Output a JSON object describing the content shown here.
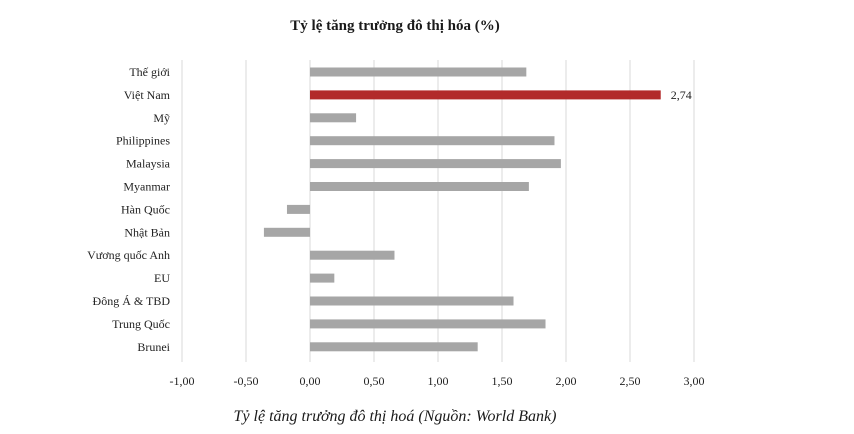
{
  "chart_data": {
    "type": "bar",
    "orientation": "horizontal",
    "title": "Tỷ lệ tăng trưởng đô thị hóa (%)",
    "caption": "Tỷ lệ tăng trưởng đô thị hoá (Nguồn: World Bank)",
    "categories": [
      "Thế giới",
      "Việt Nam",
      "Mỹ",
      "Philippines",
      "Malaysia",
      "Myanmar",
      "Hàn Quốc",
      "Nhật Bản",
      "Vương quốc Anh",
      "EU",
      "Đông Á & TBD",
      "Trung Quốc",
      "Brunei"
    ],
    "values": [
      1.69,
      2.74,
      0.36,
      1.91,
      1.96,
      1.71,
      -0.18,
      -0.36,
      0.66,
      0.19,
      1.59,
      1.84,
      1.31
    ],
    "highlight_category": "Việt Nam",
    "data_labels": [
      {
        "category": "Việt Nam",
        "text": "2,74"
      }
    ],
    "xlim": [
      -1.0,
      3.0
    ],
    "xticks": [
      -1.0,
      -0.5,
      0.0,
      0.5,
      1.0,
      1.5,
      2.0,
      2.5,
      3.0
    ],
    "xtick_labels": [
      "-1,00",
      "-0,50",
      "0,00",
      "0,50",
      "1,00",
      "1,50",
      "2,00",
      "2,50",
      "3,00"
    ],
    "grid": "vertical",
    "colors": {
      "bar": "#a6a6a6",
      "highlight": "#b22a2a",
      "grid": "#d9d9d9"
    }
  }
}
